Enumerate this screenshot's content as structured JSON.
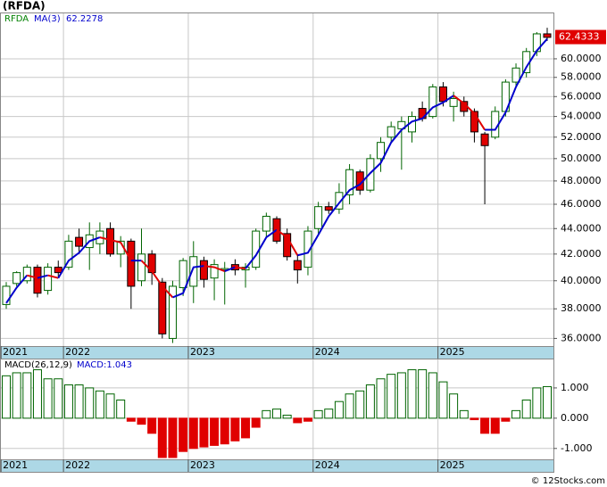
{
  "chart_data": [
    {
      "type": "candlestick",
      "title": "(RFDA)",
      "symbol": "RFDA",
      "categories": [
        "2021",
        null,
        null,
        null,
        null,
        null,
        "2022",
        null,
        null,
        null,
        null,
        null,
        null,
        null,
        null,
        null,
        null,
        null,
        "2023",
        null,
        null,
        null,
        null,
        null,
        null,
        null,
        null,
        null,
        null,
        null,
        "2024",
        null,
        null,
        null,
        null,
        null,
        null,
        null,
        null,
        null,
        null,
        null,
        "2025",
        null,
        null,
        null,
        null,
        null,
        null,
        null,
        null,
        null,
        null
      ],
      "open": [
        38.3,
        39.8,
        40.0,
        41.0,
        39.3,
        41.0,
        41.0,
        43.3,
        42.5,
        42.8,
        44.0,
        42.0,
        43.0,
        40.0,
        42.0,
        39.9,
        36.0,
        39.5,
        39.6,
        41.5,
        40.2,
        40.8,
        41.2,
        40.8,
        41.0,
        43.8,
        44.8,
        43.6,
        41.5,
        41.0,
        44.0,
        45.8,
        45.6,
        46.8,
        48.8,
        47.2,
        50.0,
        52.0,
        52.8,
        52.5,
        54.8,
        54.0,
        57.0,
        55.0,
        55.5,
        54.5,
        52.3,
        52.0,
        54.5,
        57.5,
        58.5,
        60.8,
        62.8
      ],
      "high": [
        39.9,
        40.7,
        41.2,
        41.2,
        41.3,
        41.5,
        43.5,
        44.0,
        44.5,
        44.5,
        44.5,
        43.4,
        43.2,
        44.0,
        42.3,
        40.2,
        40.0,
        41.7,
        43.0,
        41.8,
        41.6,
        41.4,
        41.6,
        41.3,
        44.0,
        45.3,
        45.0,
        44.0,
        42.0,
        44.2,
        46.2,
        46.2,
        47.8,
        49.5,
        49.0,
        50.4,
        52.0,
        53.5,
        54.0,
        54.5,
        55.5,
        57.3,
        57.5,
        56.5,
        56.0,
        54.8,
        52.5,
        55.0,
        57.8,
        59.5,
        61.2,
        63.0,
        63.5
      ],
      "low": [
        38.0,
        39.6,
        39.8,
        38.8,
        39.0,
        40.3,
        40.8,
        42.0,
        40.8,
        42.0,
        41.8,
        41.0,
        38.0,
        39.6,
        39.7,
        36.0,
        35.7,
        38.9,
        38.4,
        39.5,
        38.6,
        38.3,
        40.4,
        39.5,
        40.8,
        43.3,
        42.8,
        41.5,
        39.8,
        40.4,
        43.5,
        45.2,
        45.2,
        46.0,
        46.8,
        47.0,
        48.8,
        51.5,
        49.0,
        51.5,
        53.5,
        53.8,
        55.0,
        53.5,
        54.0,
        51.5,
        46.0,
        51.8,
        54.0,
        57.0,
        58.0,
        60.3,
        62.0
      ],
      "close": [
        39.6,
        40.6,
        41.0,
        39.1,
        41.0,
        40.6,
        43.0,
        42.6,
        43.5,
        43.8,
        42.0,
        43.0,
        39.6,
        42.0,
        40.6,
        36.3,
        39.6,
        41.5,
        41.8,
        40.1,
        41.2,
        40.9,
        40.8,
        41.0,
        43.8,
        45.0,
        43.0,
        41.8,
        40.8,
        43.8,
        45.8,
        45.5,
        47.0,
        49.0,
        47.2,
        50.0,
        51.5,
        53.0,
        53.5,
        54.0,
        53.8,
        57.0,
        55.5,
        55.8,
        54.5,
        52.5,
        51.2,
        54.5,
        57.5,
        59.0,
        60.8,
        62.8,
        62.4
      ],
      "up_color": "#006400",
      "up_fill": "#ffffff",
      "down_color": "#e00000",
      "ma": {
        "name": "MA(3)",
        "color": "#0000cc",
        "down_color": "#e00000",
        "values": [
          38.4,
          39.5,
          40.4,
          40.2,
          40.4,
          40.2,
          41.5,
          42.1,
          43.0,
          43.3,
          43.1,
          42.9,
          41.5,
          41.5,
          40.7,
          39.6,
          38.8,
          39.1,
          41.0,
          41.1,
          41.0,
          40.7,
          41.0,
          40.9,
          41.9,
          43.3,
          43.9,
          43.3,
          41.9,
          42.1,
          43.5,
          45.0,
          46.1,
          47.2,
          47.7,
          48.7,
          49.6,
          51.5,
          52.7,
          53.5,
          53.8,
          54.9,
          55.4,
          56.1,
          55.3,
          54.3,
          52.7,
          52.7,
          54.4,
          57.0,
          59.1,
          60.9,
          62.2278
        ]
      },
      "last_price": 62.4333,
      "last_price_color": "#e00000",
      "ylim": [
        35.5,
        65.3
      ],
      "log_scale": true,
      "yticks": [
        {
          "value": 36,
          "label": "36.0000"
        },
        {
          "value": 38,
          "label": "38.0000"
        },
        {
          "value": 40,
          "label": "40.0000"
        },
        {
          "value": 42,
          "label": "42.0000"
        },
        {
          "value": 44,
          "label": "44.0000"
        },
        {
          "value": 46,
          "label": "46.0000"
        },
        {
          "value": 48,
          "label": "48.0000"
        },
        {
          "value": 50,
          "label": "50.0000"
        },
        {
          "value": 52,
          "label": "52.0000"
        },
        {
          "value": 54,
          "label": "54.0000"
        },
        {
          "value": 56,
          "label": "56.0000"
        },
        {
          "value": 58,
          "label": "58.0000"
        },
        {
          "value": 60,
          "label": "60.0000"
        }
      ],
      "grid": true
    },
    {
      "type": "macd",
      "title": "MACD(26,12,9)",
      "categories": [
        "2021",
        null,
        null,
        null,
        null,
        null,
        "2022",
        null,
        null,
        null,
        null,
        null,
        null,
        null,
        null,
        null,
        null,
        null,
        "2023",
        null,
        null,
        null,
        null,
        null,
        null,
        null,
        null,
        null,
        null,
        null,
        "2024",
        null,
        null,
        null,
        null,
        null,
        null,
        null,
        null,
        null,
        null,
        null,
        "2025",
        null,
        null,
        null,
        null,
        null,
        null,
        null,
        null,
        null,
        null
      ],
      "values": [
        1.4,
        1.5,
        1.5,
        1.6,
        1.3,
        1.3,
        1.1,
        1.1,
        1.0,
        0.9,
        0.8,
        0.6,
        -0.1,
        -0.2,
        -0.5,
        -1.3,
        -1.3,
        -1.1,
        -1.0,
        -0.95,
        -0.9,
        -0.85,
        -0.75,
        -0.65,
        -0.3,
        0.25,
        0.3,
        0.1,
        -0.15,
        -0.1,
        0.25,
        0.3,
        0.55,
        0.8,
        0.9,
        1.1,
        1.3,
        1.45,
        1.5,
        1.6,
        1.6,
        1.5,
        1.2,
        0.8,
        0.25,
        -0.05,
        -0.5,
        -0.5,
        -0.1,
        0.25,
        0.6,
        1.0,
        1.043
      ],
      "last_value_label": "MACD:1.043",
      "up_color": "#006400",
      "up_fill": "#ffffff",
      "down_color": "#e00000",
      "ylim": [
        -1.36,
        1.97
      ],
      "yticks": [
        {
          "value": 1,
          "label": "1.000"
        },
        {
          "value": 0,
          "label": "0.000"
        },
        {
          "value": -1,
          "label": "-1.000"
        }
      ],
      "grid": true
    }
  ],
  "footer": "© 12Stocks.com"
}
